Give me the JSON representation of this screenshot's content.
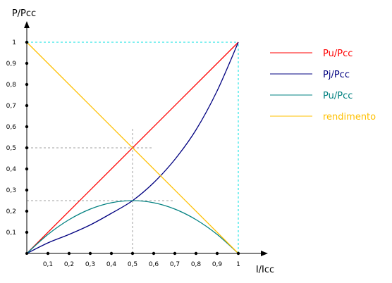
{
  "chart_data": {
    "type": "line",
    "title": "",
    "xlabel": "I/Icc",
    "ylabel": "P/Pcc",
    "xlim": [
      0,
      1
    ],
    "ylim": [
      0,
      1
    ],
    "x_ticks": [
      "0,1",
      "0,2",
      "0,3",
      "0,4",
      "0,5",
      "0,6",
      "0,7",
      "0,8",
      "0,9",
      "1"
    ],
    "y_ticks": [
      "0,1",
      "0,2",
      "0,3",
      "0,4",
      "0,5",
      "0,6",
      "0,7",
      "0,8",
      "0,9",
      "1"
    ],
    "grid": false,
    "legend_position": "right",
    "series": [
      {
        "name": "Pu/Pcc",
        "color": "#ff0000",
        "x": [
          0,
          1
        ],
        "y": [
          0,
          1
        ]
      },
      {
        "name": "Pj/Pcc",
        "color": "#000080",
        "x": [
          0,
          0.1,
          0.2,
          0.3,
          0.4,
          0.5,
          0.6,
          0.7,
          0.8,
          0.9,
          1
        ],
        "y": [
          0,
          0.05,
          0.09,
          0.135,
          0.19,
          0.25,
          0.335,
          0.445,
          0.585,
          0.77,
          1
        ]
      },
      {
        "name": "Pu/Pcc",
        "color": "#008080",
        "x": [
          0,
          0.1,
          0.2,
          0.3,
          0.4,
          0.5,
          0.6,
          0.7,
          0.8,
          0.9,
          1
        ],
        "y": [
          0,
          0.09,
          0.16,
          0.21,
          0.24,
          0.25,
          0.24,
          0.21,
          0.16,
          0.09,
          0
        ]
      },
      {
        "name": "rendimento",
        "color": "#ffc000",
        "x": [
          0,
          1
        ],
        "y": [
          1,
          0
        ]
      }
    ],
    "reference_lines": [
      {
        "kind": "vertical",
        "x": 1,
        "y_to": 1,
        "color": "#00e0e0"
      },
      {
        "kind": "horizontal",
        "y": 1,
        "x_to": 1,
        "color": "#00e0e0"
      },
      {
        "kind": "vertical",
        "x": 0.5,
        "y_to": 0.6,
        "color": "#a0a0a0"
      },
      {
        "kind": "horizontal",
        "y": 0.5,
        "x_to": 0.59,
        "color": "#a0a0a0"
      },
      {
        "kind": "horizontal",
        "y": 0.25,
        "x_to": 0.7,
        "color": "#a0a0a0"
      }
    ]
  }
}
